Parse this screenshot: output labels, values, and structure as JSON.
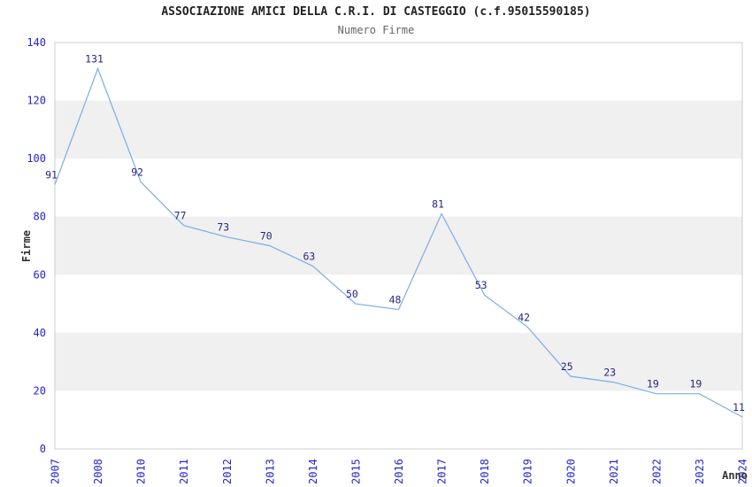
{
  "chart_data": {
    "type": "line",
    "title": "ASSOCIAZIONE AMICI DELLA C.R.I. DI CASTEGGIO (c.f.95015590185)",
    "subtitle": "Numero Firme",
    "xlabel": "Anno",
    "ylabel": "Firme",
    "categories": [
      "2007",
      "2008",
      "2010",
      "2011",
      "2012",
      "2013",
      "2014",
      "2015",
      "2016",
      "2017",
      "2018",
      "2019",
      "2020",
      "2021",
      "2022",
      "2023",
      "2024"
    ],
    "values": [
      91,
      131,
      92,
      77,
      73,
      70,
      63,
      50,
      48,
      81,
      53,
      42,
      25,
      23,
      19,
      19,
      11
    ],
    "ylim": [
      0,
      140
    ],
    "ytick_step": 20,
    "yticks": [
      0,
      20,
      40,
      60,
      80,
      100,
      120,
      140
    ],
    "grid": "alternating-horizontal-bands",
    "band_ranges": [
      [
        20,
        40
      ],
      [
        60,
        80
      ],
      [
        100,
        120
      ]
    ],
    "legend": "none",
    "data_labels_shown": true,
    "colors": {
      "line": "#7aaee6",
      "tick_labels": "#2525cf",
      "data_labels": "#26267f",
      "band_fill": "#f0f0f0",
      "plot_border": "#cccccc",
      "title": "#222222",
      "subtitle": "#666666",
      "axis_titles": "#333333",
      "background": "#ffffff"
    }
  }
}
